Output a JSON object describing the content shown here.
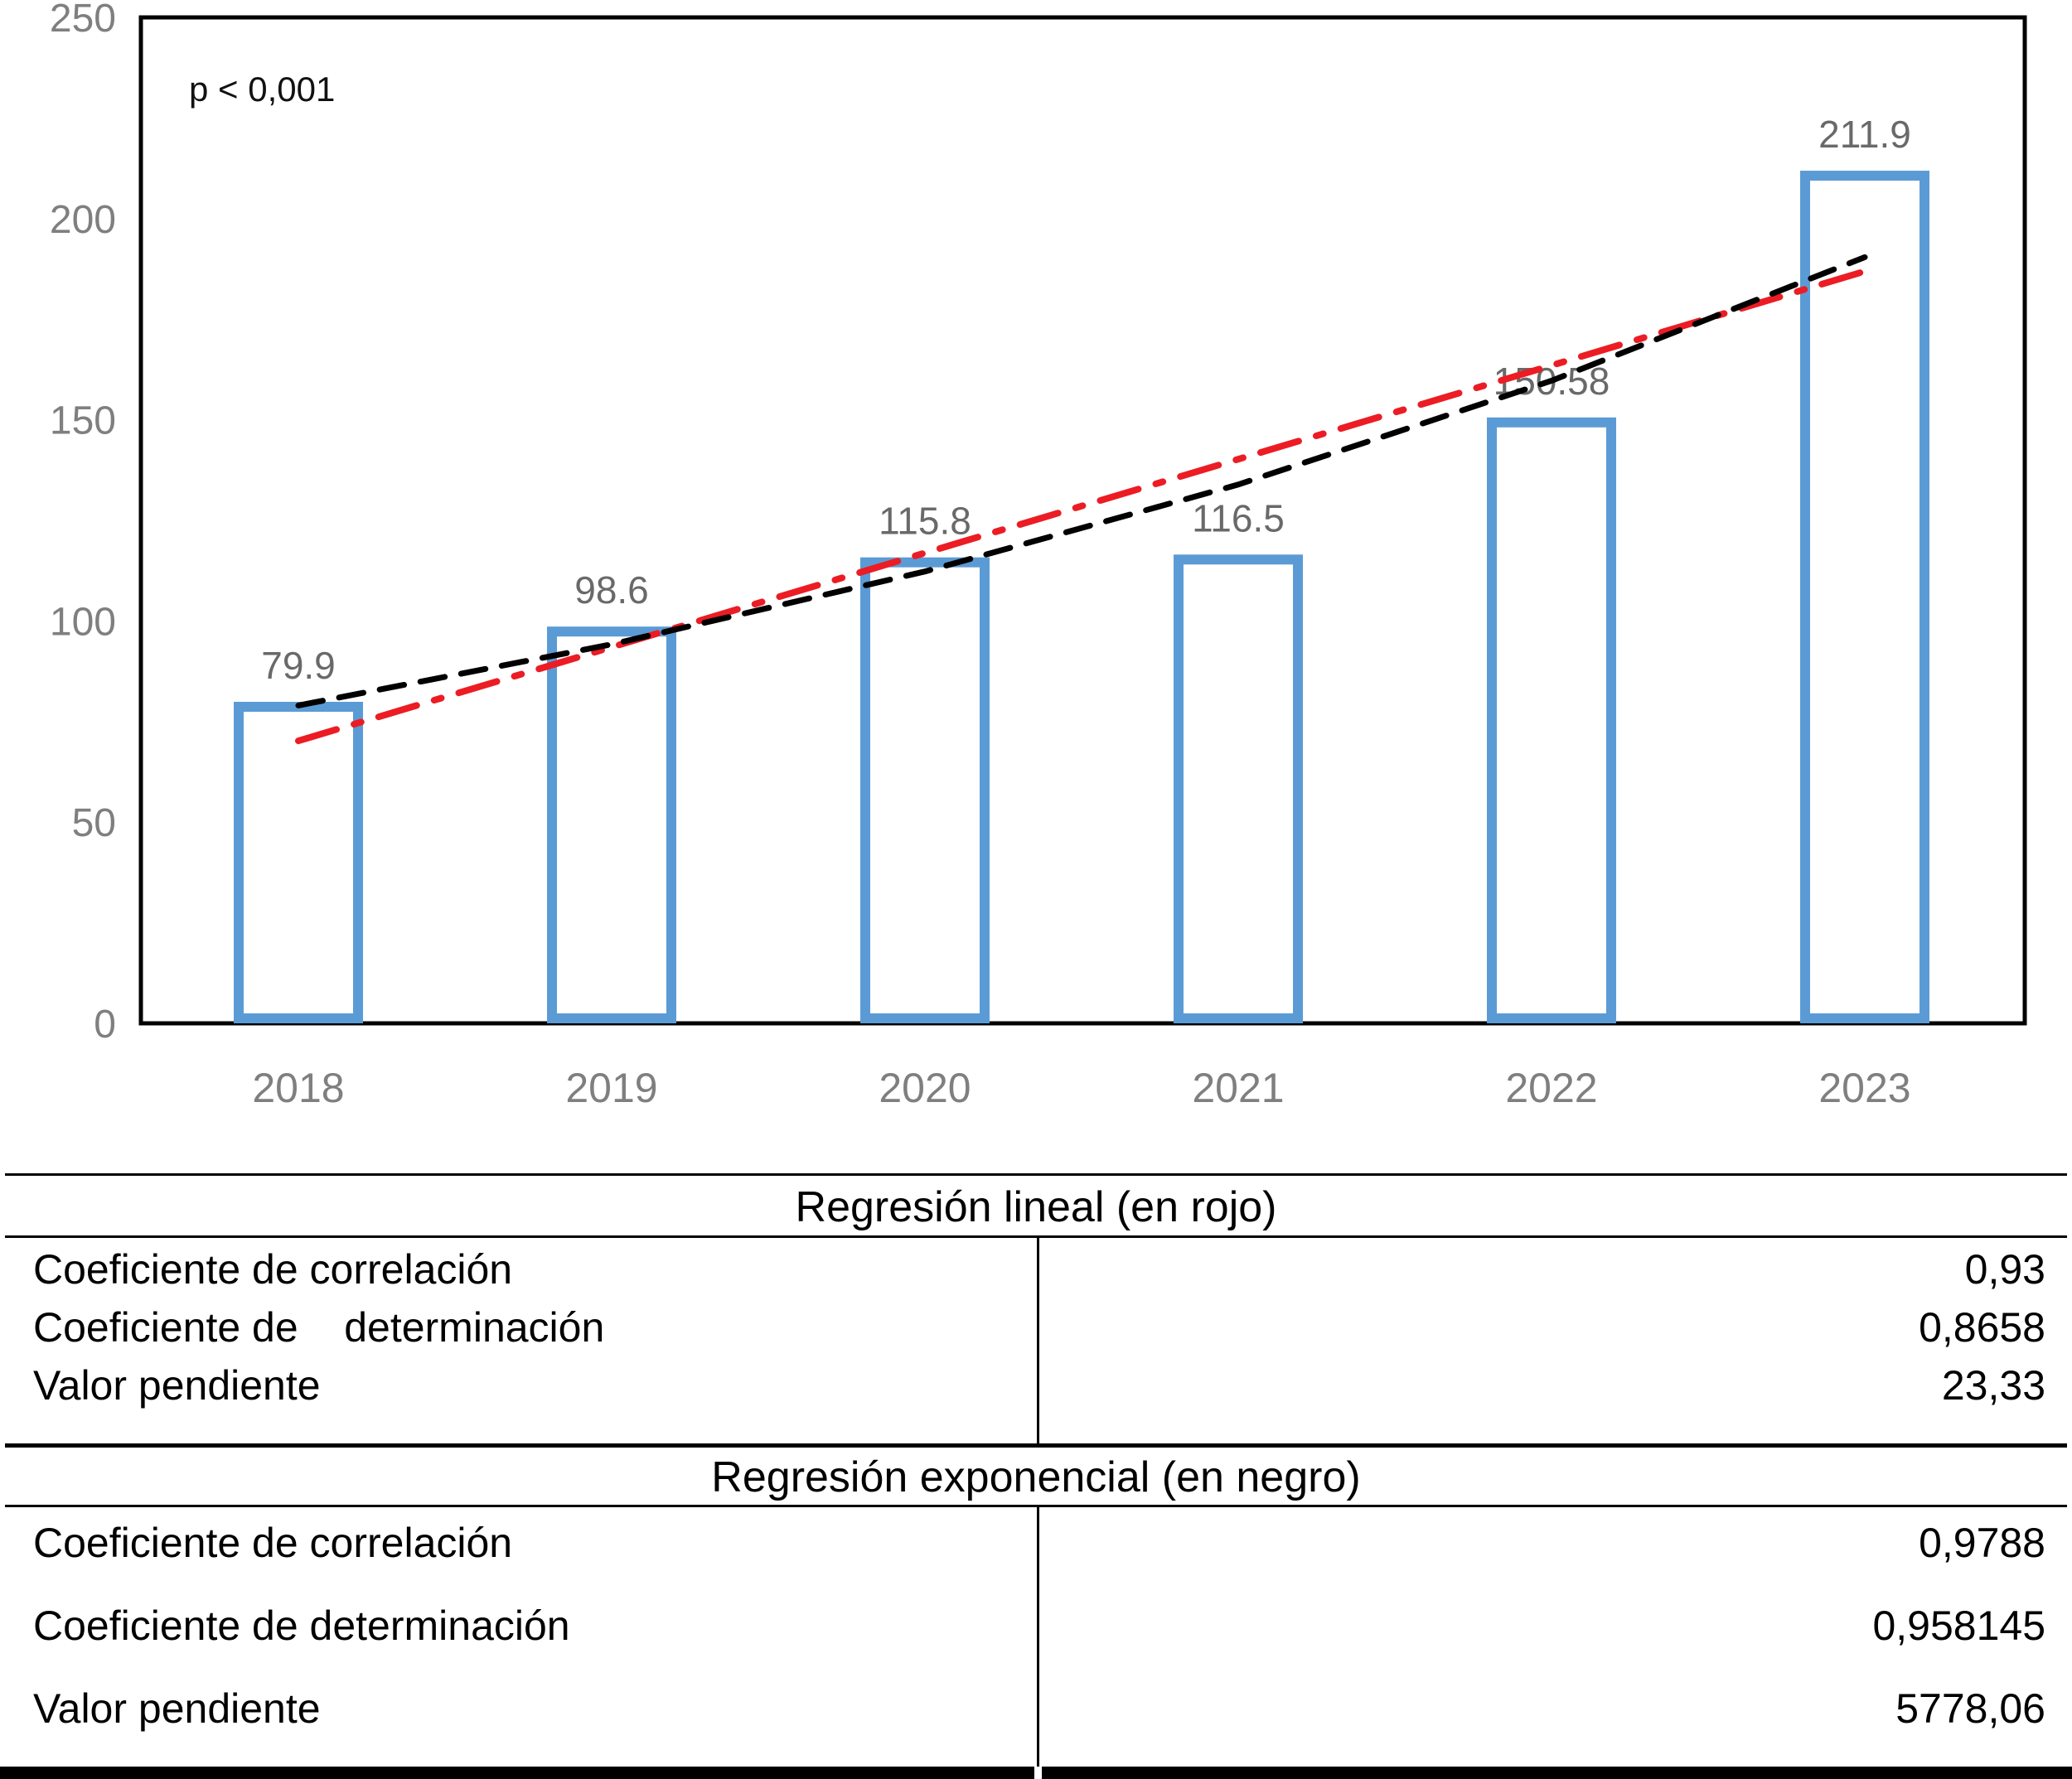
{
  "chart_data": {
    "type": "bar",
    "title": "",
    "annotation": "p < 0,001",
    "categories": [
      "2018",
      "2019",
      "2020",
      "2021",
      "2022",
      "2023"
    ],
    "values": [
      79.9,
      98.6,
      115.8,
      116.5,
      150.58,
      211.9
    ],
    "bar_labels": [
      "79.9",
      "98.6",
      "115.8",
      "116.5",
      "150.58",
      "211.9"
    ],
    "ylim": [
      0,
      250
    ],
    "yticks": [
      "0",
      "50",
      "100",
      "150",
      "200",
      "250"
    ],
    "grid": false,
    "legend_position": "none",
    "bar_color": "#5B9BD5",
    "axis_text_color": "#7F7F7F",
    "label_text_color": "#696969",
    "trendlines": [
      {
        "name": "Regresión lineal",
        "color": "#EC1C24",
        "style": "dash-dot",
        "values": [
          70.2,
          93.5,
          116.9,
          140.2,
          163.5,
          186.9
        ]
      },
      {
        "name": "Regresión exponencial",
        "color": "#000000",
        "style": "dashed",
        "values": [
          79.0,
          94.2,
          112.3,
          133.9,
          159.7,
          190.4
        ]
      }
    ]
  },
  "table": {
    "sections": [
      {
        "header": "Regresión lineal (en rojo)",
        "rows": [
          {
            "label": "Coeficiente de correlación",
            "value": "0,93"
          },
          {
            "label": "Coeficiente de    determinación",
            "value": "0,8658"
          },
          {
            "label": "Valor pendiente",
            "value": "23,33"
          }
        ]
      },
      {
        "header": "Regresión exponencial (en negro)",
        "rows": [
          {
            "label": "Coeficiente de correlación",
            "value": "0,9788"
          },
          {
            "label": "Coeficiente de determinación",
            "value": "0,958145"
          },
          {
            "label": "Valor pendiente",
            "value": "5778,06"
          }
        ]
      }
    ]
  }
}
